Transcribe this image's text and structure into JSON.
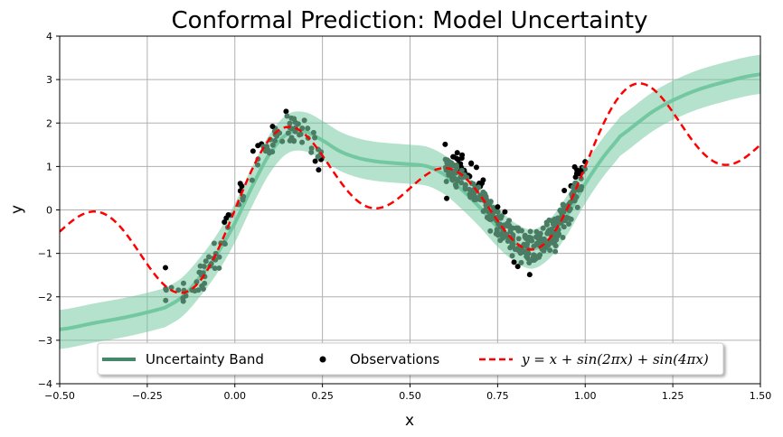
{
  "chart_data": {
    "type": "line",
    "title": "Conformal Prediction: Model Uncertainty",
    "xlabel": "x",
    "ylabel": "y",
    "xlim": [
      -0.5,
      1.5
    ],
    "ylim": [
      -4,
      4
    ],
    "xticks": [
      -0.5,
      -0.25,
      0.0,
      0.25,
      0.5,
      0.75,
      1.0,
      1.25,
      1.5
    ],
    "xtick_labels": [
      "−0.50",
      "−0.25",
      "0.00",
      "0.25",
      "0.50",
      "0.75",
      "1.00",
      "1.25",
      "1.50"
    ],
    "yticks": [
      -4,
      -3,
      -2,
      -1,
      0,
      1,
      2,
      3,
      4
    ],
    "ytick_labels": [
      "−4",
      "−3",
      "−2",
      "−1",
      "0",
      "1",
      "2",
      "3",
      "4"
    ],
    "grid": true,
    "legend_position": "bottom-center",
    "series": [
      {
        "name": "Uncertainty Band",
        "kind": "line-with-band",
        "color": "#45876a",
        "band_color": "#6cc59c",
        "x": [
          -0.5,
          -0.4,
          -0.3,
          -0.2,
          -0.15,
          -0.1,
          -0.05,
          0.0,
          0.05,
          0.1,
          0.15,
          0.2,
          0.25,
          0.3,
          0.35,
          0.4,
          0.45,
          0.5,
          0.55,
          0.6,
          0.65,
          0.7,
          0.75,
          0.8,
          0.85,
          0.9,
          0.95,
          1.0,
          1.05,
          1.1,
          1.2,
          1.3,
          1.4,
          1.5
        ],
        "y": [
          -2.75,
          -2.6,
          -2.45,
          -2.25,
          -2.0,
          -1.55,
          -1.0,
          -0.3,
          0.55,
          1.3,
          1.75,
          1.8,
          1.6,
          1.35,
          1.2,
          1.12,
          1.08,
          1.05,
          1.0,
          0.8,
          0.45,
          0.05,
          -0.4,
          -0.75,
          -0.9,
          -0.65,
          -0.1,
          0.6,
          1.2,
          1.7,
          2.3,
          2.7,
          2.95,
          3.12
        ],
        "band_halfwidth": 0.45
      },
      {
        "name": "Observations",
        "kind": "scatter",
        "color": "#000000",
        "clusters": [
          {
            "x_range": [
              -0.2,
              0.25
            ],
            "count": 110
          },
          {
            "x_range": [
              0.6,
              1.0
            ],
            "count": 360
          }
        ]
      },
      {
        "name": "y = x + sin(2πx) + sin(4πx)",
        "kind": "line",
        "color": "#ff0000",
        "dash": "dashed",
        "formula": "x + sin(2*pi*x) + sin(4*pi*x)"
      }
    ]
  },
  "legend": {
    "items": [
      {
        "label": "Uncertainty Band",
        "type": "line"
      },
      {
        "label": "Observations",
        "type": "marker"
      },
      {
        "label_prefix": "y = x + sin(2",
        "label_pi": "π",
        "label_mid": "x) + sin(4",
        "label_suffix": "x)",
        "type": "dashed"
      }
    ]
  }
}
